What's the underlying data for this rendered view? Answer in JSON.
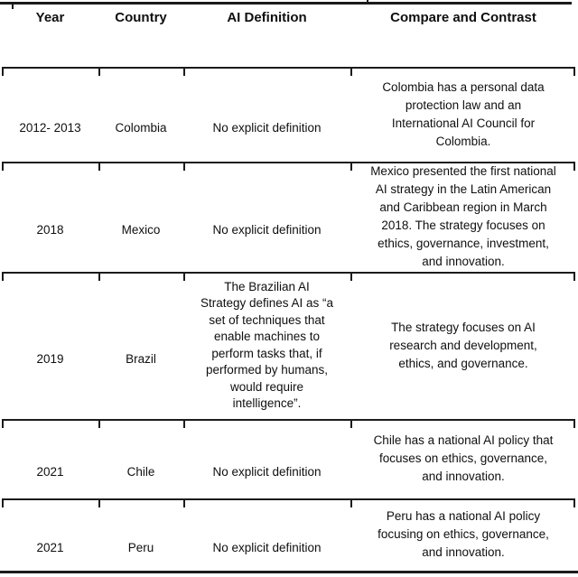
{
  "colors": {
    "background": "#ffffff",
    "line": "#1b1b1b",
    "text": "#0f0f0f"
  },
  "table": {
    "columns": [
      "Year",
      "Country",
      "AI Definition",
      "Compare and Contrast"
    ],
    "rows": [
      {
        "year": "2012- 2013",
        "country": "Colombia",
        "ai_definition": "No explicit definition",
        "compare_and_contrast": "Colombia has a personal data\nprotection law and an\nInternational AI Council for\nColombia."
      },
      {
        "year": "2018",
        "country": "Mexico",
        "ai_definition": "No explicit definition",
        "compare_and_contrast": "Mexico presented the first national\nAI strategy in the Latin American\nand Caribbean region in March\n2018. The strategy focuses on\nethics, governance, investment,\nand innovation."
      },
      {
        "year": "2019",
        "country": "Brazil",
        "ai_definition": "The Brazilian AI\nStrategy defines AI as “a\nset of techniques that\nenable machines to\nperform tasks that, if\nperformed by humans,\nwould require\nintelligence”.",
        "compare_and_contrast": "The strategy focuses on AI\nresearch and development,\nethics, and governance."
      },
      {
        "year": "2021",
        "country": "Chile",
        "ai_definition": "No explicit definition",
        "compare_and_contrast": "Chile has a national AI policy that\nfocuses on ethics, governance,\nand innovation."
      },
      {
        "year": "2021",
        "country": "Peru",
        "ai_definition": "No explicit definition",
        "compare_and_contrast": "Peru has a national AI policy\nfocusing on ethics, governance,\nand innovation."
      }
    ]
  }
}
